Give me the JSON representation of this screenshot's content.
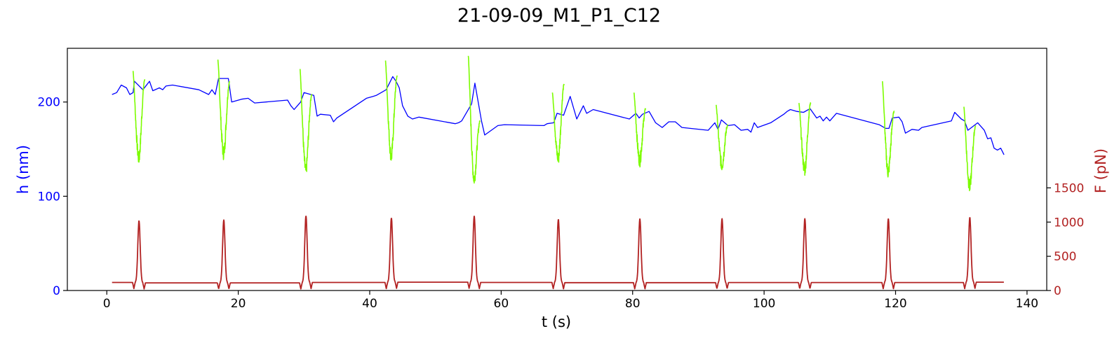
{
  "chart_data": {
    "type": "line",
    "title": "21-09-09_M1_P1_C12",
    "xlabel": "t (s)",
    "ylabel_left": "h (nm)",
    "ylabel_right": "F (pN)",
    "xlim": [
      -6,
      143
    ],
    "ylim_left": [
      0,
      257
    ],
    "ylim_right": [
      0,
      3540
    ],
    "x_ticks": [
      0,
      20,
      40,
      60,
      80,
      100,
      120,
      140
    ],
    "y_left_ticks": [
      0,
      100,
      200
    ],
    "y_right_ticks": [
      0,
      500,
      1000,
      1500
    ],
    "grid": false,
    "colors": {
      "height": "#0000ff",
      "height_pulse": "#7cfc00",
      "force": "#b22222",
      "left_axis": "#0000ff",
      "right_axis": "#b22222"
    },
    "series": [
      {
        "axis": "left",
        "points": [
          [
            0.8,
            208
          ],
          [
            1.5,
            210
          ],
          [
            2.2,
            218
          ],
          [
            3.0,
            215
          ],
          [
            3.5,
            208
          ],
          [
            4.0,
            210
          ],
          [
            4.2,
            222
          ],
          [
            5.5,
            213
          ],
          [
            6.5,
            222
          ],
          [
            7.0,
            212
          ],
          [
            8.0,
            215
          ],
          [
            8.5,
            213
          ],
          [
            9.0,
            217
          ],
          [
            10.0,
            218
          ],
          [
            14.0,
            213
          ],
          [
            15.5,
            208
          ],
          [
            16.0,
            213
          ],
          [
            16.5,
            208
          ],
          [
            17.0,
            225
          ],
          [
            18.5,
            225
          ],
          [
            19.0,
            200
          ],
          [
            20.5,
            203
          ],
          [
            21.5,
            204
          ],
          [
            22.5,
            199
          ],
          [
            27.5,
            202
          ],
          [
            28.0,
            196
          ],
          [
            28.5,
            192
          ],
          [
            29.0,
            196
          ],
          [
            29.5,
            200
          ],
          [
            30.0,
            210
          ],
          [
            31.5,
            207
          ],
          [
            32.0,
            185
          ],
          [
            32.5,
            187
          ],
          [
            34.0,
            186
          ],
          [
            34.5,
            179
          ],
          [
            35.0,
            183
          ],
          [
            39.5,
            204
          ],
          [
            40.5,
            206
          ],
          [
            41.0,
            207
          ],
          [
            42.0,
            211
          ],
          [
            42.5,
            213
          ],
          [
            43.5,
            227
          ],
          [
            44.0,
            222
          ],
          [
            44.5,
            215
          ],
          [
            45.0,
            196
          ],
          [
            45.8,
            185
          ],
          [
            46.5,
            182
          ],
          [
            47.5,
            184
          ],
          [
            53.0,
            177
          ],
          [
            53.5,
            178
          ],
          [
            54.0,
            180
          ],
          [
            55.5,
            198
          ],
          [
            56.0,
            220
          ],
          [
            57.0,
            180
          ],
          [
            57.5,
            165
          ],
          [
            58.5,
            170
          ],
          [
            59.5,
            175
          ],
          [
            60.5,
            176
          ],
          [
            66.5,
            175
          ],
          [
            67.0,
            177
          ],
          [
            68.0,
            178
          ],
          [
            68.5,
            188
          ],
          [
            69.5,
            186
          ],
          [
            70.5,
            206
          ],
          [
            71.5,
            182
          ],
          [
            72.5,
            196
          ],
          [
            73.0,
            188
          ],
          [
            74.0,
            192
          ],
          [
            79.5,
            182
          ],
          [
            80.5,
            188
          ],
          [
            81.0,
            183
          ],
          [
            81.5,
            187
          ],
          [
            82.5,
            190
          ],
          [
            83.5,
            178
          ],
          [
            84.5,
            173
          ],
          [
            85.5,
            179
          ],
          [
            86.5,
            179
          ],
          [
            87.5,
            173
          ],
          [
            91.5,
            170
          ],
          [
            92.5,
            178
          ],
          [
            93.0,
            171
          ],
          [
            93.5,
            181
          ],
          [
            94.5,
            175
          ],
          [
            95.5,
            176
          ],
          [
            96.5,
            170
          ],
          [
            97.5,
            171
          ],
          [
            98.0,
            168
          ],
          [
            98.5,
            178
          ],
          [
            99.0,
            173
          ],
          [
            101.0,
            178
          ],
          [
            103.0,
            187
          ],
          [
            103.5,
            190
          ],
          [
            104.0,
            192
          ],
          [
            105.0,
            190
          ],
          [
            106.0,
            189
          ],
          [
            107.0,
            193
          ],
          [
            108.0,
            183
          ],
          [
            108.5,
            185
          ],
          [
            109.0,
            180
          ],
          [
            109.5,
            184
          ],
          [
            110.0,
            180
          ],
          [
            111.0,
            188
          ],
          [
            117.5,
            176
          ],
          [
            118.5,
            172
          ],
          [
            119.0,
            172
          ],
          [
            119.5,
            183
          ],
          [
            120.5,
            184
          ],
          [
            121.0,
            179
          ],
          [
            121.5,
            167
          ],
          [
            122.5,
            171
          ],
          [
            123.5,
            170
          ],
          [
            124.0,
            173
          ],
          [
            128.5,
            180
          ],
          [
            129.0,
            189
          ],
          [
            130.0,
            182
          ],
          [
            130.5,
            180
          ],
          [
            131.0,
            170
          ],
          [
            132.5,
            178
          ],
          [
            133.5,
            170
          ],
          [
            134.0,
            161
          ],
          [
            134.5,
            162
          ],
          [
            135.0,
            151
          ],
          [
            135.5,
            149
          ],
          [
            136.0,
            151
          ],
          [
            136.5,
            144
          ]
        ]
      },
      {
        "axis": "left",
        "name": "",
        "peaks": [
          4.9,
          17.8,
          30.3,
          43.3,
          55.9,
          68.7,
          81.1,
          93.6,
          106.2,
          118.9,
          131.3
        ],
        "minima": [
          140,
          145,
          127,
          142,
          118,
          140,
          138,
          133,
          128,
          125,
          110
        ],
        "start_values": [
          233,
          245,
          235,
          244,
          249,
          210,
          210,
          197,
          199,
          222,
          195
        ],
        "end_values": [
          224,
          222,
          208,
          228,
          180,
          219,
          193,
          176,
          199,
          190,
          175
        ]
      },
      {
        "axis": "right",
        "baseline": [
          118,
          112,
          112,
          118,
          122,
          118,
          115,
          115,
          117,
          117,
          117,
          122
        ],
        "peak_values": [
          1020,
          1030,
          1090,
          1060,
          1090,
          1040,
          1050,
          1050,
          1050,
          1050,
          1070
        ]
      }
    ]
  }
}
